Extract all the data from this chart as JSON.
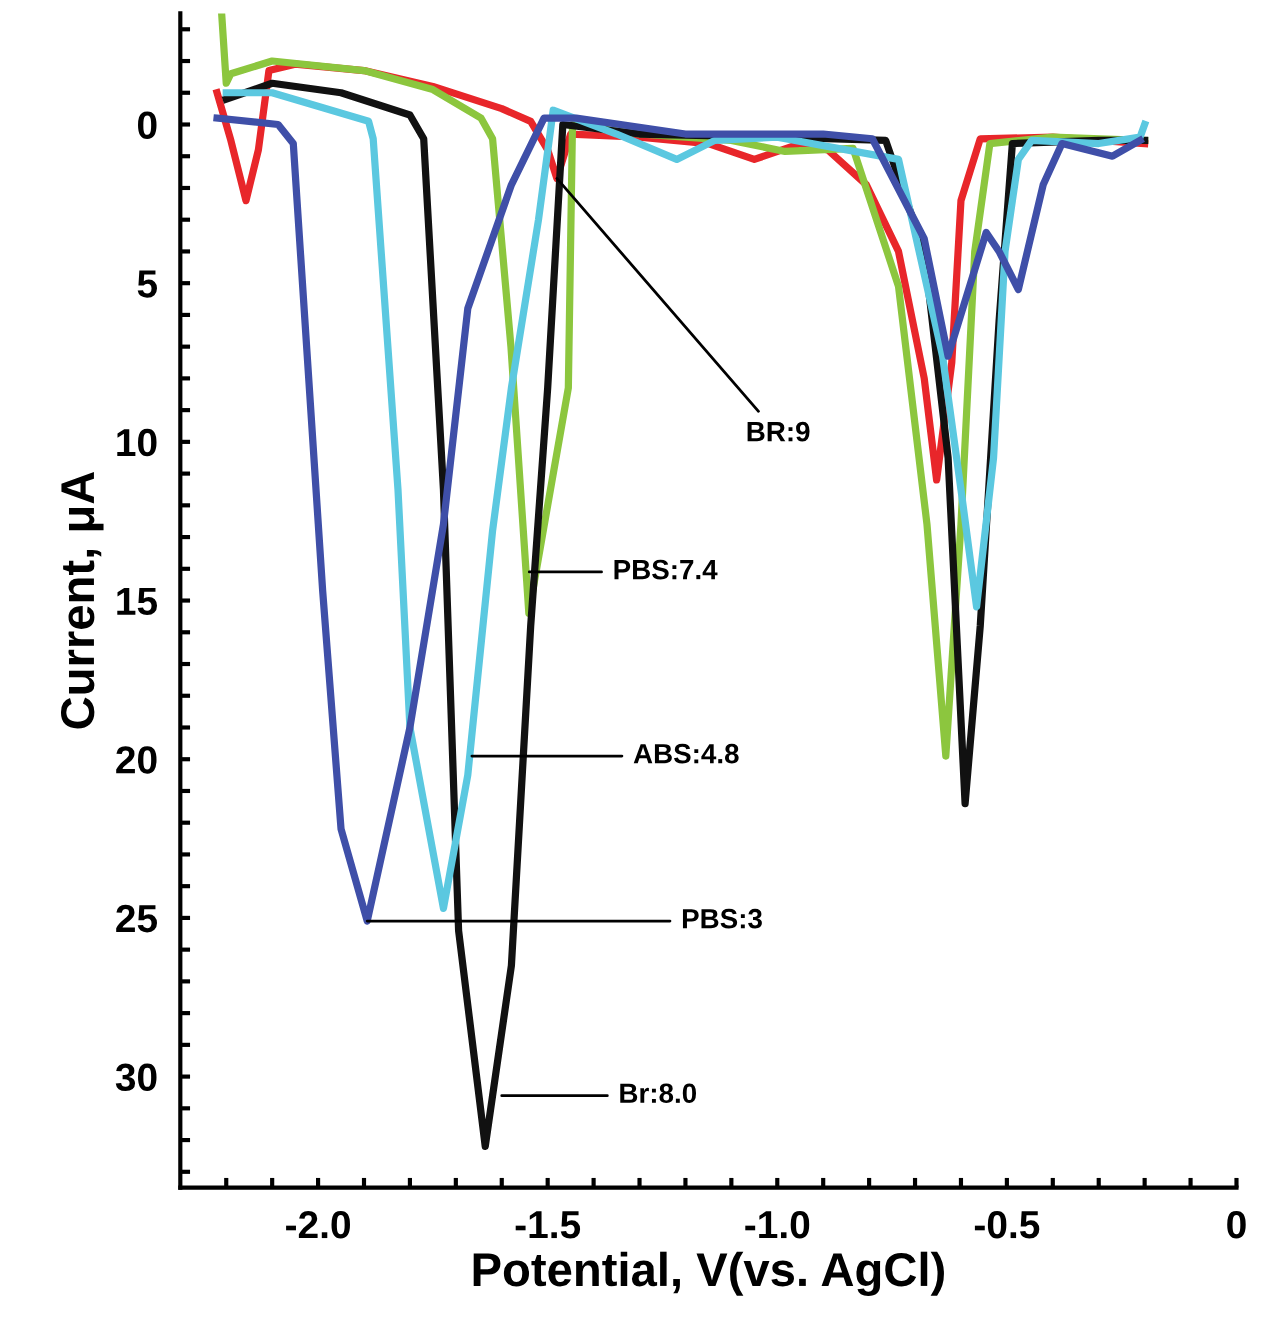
{
  "chart_data": {
    "type": "line",
    "xlabel": "Potential, V(vs. AgCl)",
    "ylabel": "Current, μA",
    "xlim": [
      -2.3,
      0
    ],
    "ylim": [
      33.5,
      -3.5
    ],
    "xticks": [
      {
        "value": -2.0,
        "label": "-2.0"
      },
      {
        "value": -1.5,
        "label": "-1.5"
      },
      {
        "value": -1.0,
        "label": "-1.0"
      },
      {
        "value": -0.5,
        "label": "-0.5"
      },
      0,
      {
        "value": -2.2,
        "label": null
      },
      {
        "value": -2.1,
        "label": null
      },
      {
        "value": -1.9,
        "label": null
      },
      {
        "value": -1.8,
        "label": null
      },
      {
        "value": -1.7,
        "label": null
      },
      {
        "value": -1.6,
        "label": null
      },
      {
        "value": -1.4,
        "label": null
      },
      {
        "value": -1.3,
        "label": null
      },
      {
        "value": -1.2,
        "label": null
      },
      {
        "value": -1.1,
        "label": null
      },
      {
        "value": -0.9,
        "label": null
      },
      {
        "value": -0.8,
        "label": null
      },
      {
        "value": -0.7,
        "label": null
      },
      {
        "value": -0.6,
        "label": null
      },
      {
        "value": -0.4,
        "label": null
      },
      {
        "value": -0.3,
        "label": null
      },
      {
        "value": -0.2,
        "label": null
      },
      {
        "value": -0.1,
        "label": null
      }
    ],
    "yticks": [
      0,
      5,
      10,
      15,
      20,
      25,
      30,
      {
        "value": -3,
        "label": null
      },
      {
        "value": -2,
        "label": null
      },
      {
        "value": -1,
        "label": null
      },
      {
        "value": 1,
        "label": null
      },
      {
        "value": 2,
        "label": null
      },
      {
        "value": 3,
        "label": null
      },
      {
        "value": 4,
        "label": null
      },
      {
        "value": 6,
        "label": null
      },
      {
        "value": 7,
        "label": null
      },
      {
        "value": 8,
        "label": null
      },
      {
        "value": 9,
        "label": null
      },
      {
        "value": 11,
        "label": null
      },
      {
        "value": 12,
        "label": null
      },
      {
        "value": 13,
        "label": null
      },
      {
        "value": 14,
        "label": null
      },
      {
        "value": 16,
        "label": null
      },
      {
        "value": 17,
        "label": null
      },
      {
        "value": 18,
        "label": null
      },
      {
        "value": 19,
        "label": null
      },
      {
        "value": 21,
        "label": null
      },
      {
        "value": 22,
        "label": null
      },
      {
        "value": 23,
        "label": null
      },
      {
        "value": 24,
        "label": null
      },
      {
        "value": 26,
        "label": null
      },
      {
        "value": 27,
        "label": null
      },
      {
        "value": 28,
        "label": null
      },
      {
        "value": 29,
        "label": null
      },
      {
        "value": 31,
        "label": null
      },
      {
        "value": 32,
        "label": null
      },
      {
        "value": 33,
        "label": null
      }
    ],
    "grid": false,
    "legend": false,
    "marker": "none",
    "line_style": "solid",
    "series": [
      {
        "color": "#e8262a",
        "x": [
          -2.22,
          -2.19,
          -2.157,
          -2.13,
          -2.107,
          -2.05,
          -1.9,
          -1.75,
          -1.6,
          -1.537,
          -1.5,
          -1.48,
          -1.45,
          -1.3,
          -1.15,
          -1.05,
          -0.95,
          -0.89,
          -0.806,
          -0.736,
          -0.68,
          -0.653,
          -0.62,
          -0.6,
          -0.558,
          -0.4,
          -0.2
        ],
        "values": [
          -1.0,
          0.5,
          2.4,
          0.8,
          -1.7,
          -1.9,
          -1.7,
          -1.2,
          -0.5,
          -0.1,
          0.8,
          1.7,
          0.3,
          0.4,
          0.6,
          1.1,
          0.6,
          0.8,
          1.9,
          4.0,
          8.0,
          11.2,
          7.5,
          2.4,
          0.45,
          0.4,
          0.6
        ]
      },
      {
        "color": "#8cc63e",
        "x": [
          -2.21,
          -2.2,
          -2.19,
          -2.1,
          -1.9,
          -1.75,
          -1.645,
          -1.62,
          -1.58,
          -1.541,
          -1.5,
          -1.455,
          -1.446,
          -1.3,
          -1.1,
          -0.983,
          -0.835,
          -0.736,
          -0.674,
          -0.633,
          -0.6,
          -0.57,
          -0.537,
          -0.4,
          -0.2
        ],
        "values": [
          -3.5,
          -1.3,
          -1.6,
          -2.0,
          -1.7,
          -1.1,
          -0.2,
          0.45,
          7.0,
          15.4,
          12.0,
          8.3,
          0.0,
          0.3,
          0.5,
          0.85,
          0.75,
          5.1,
          12.6,
          19.9,
          12.6,
          4.0,
          0.6,
          0.4,
          0.5
        ]
      },
      {
        "color": "#111111",
        "x": [
          -2.2,
          -2.1,
          -1.95,
          -1.8,
          -1.77,
          -1.727,
          -1.694,
          -1.636,
          -1.579,
          -1.537,
          -1.5,
          -1.467,
          -1.3,
          -1.0,
          -0.764,
          -0.68,
          -0.628,
          -0.591,
          -0.558,
          -0.517,
          -0.488,
          -0.3,
          -0.2
        ],
        "values": [
          -0.8,
          -1.3,
          -1.0,
          -0.3,
          0.45,
          11.5,
          25.4,
          32.2,
          26.5,
          15.8,
          8.3,
          0.0,
          0.3,
          0.4,
          0.5,
          4.0,
          10.5,
          21.4,
          15.8,
          6.2,
          0.6,
          0.5,
          0.5
        ]
      },
      {
        "color": "#5bc8e0",
        "x": [
          -2.2,
          -2.1,
          -1.89,
          -1.88,
          -1.826,
          -1.8,
          -1.727,
          -1.674,
          -1.62,
          -1.579,
          -1.52,
          -1.488,
          -1.35,
          -1.219,
          -1.136,
          -1.0,
          -0.736,
          -0.64,
          -0.6,
          -0.566,
          -0.529,
          -0.504,
          -0.475,
          -0.446,
          -0.3,
          -0.21,
          -0.2
        ],
        "values": [
          -1.0,
          -1.0,
          -0.1,
          0.45,
          11.5,
          19.0,
          24.7,
          20.5,
          12.8,
          8.3,
          3.0,
          -0.45,
          0.3,
          1.1,
          0.5,
          0.4,
          1.1,
          7.3,
          11.5,
          15.2,
          10.5,
          4.0,
          1.1,
          0.5,
          0.6,
          0.4,
          0.0
        ]
      },
      {
        "color": "#3f4fa8",
        "x": [
          -2.22,
          -2.087,
          -2.054,
          -1.99,
          -1.95,
          -1.893,
          -1.8,
          -1.727,
          -1.674,
          -1.579,
          -1.508,
          -1.438,
          -1.2,
          -0.9,
          -0.793,
          -0.68,
          -0.628,
          -0.545,
          -0.517,
          -0.475,
          -0.421,
          -0.38,
          -0.27,
          -0.21
        ],
        "values": [
          -0.2,
          0.0,
          0.6,
          14.7,
          22.2,
          25.1,
          19.0,
          12.6,
          5.8,
          1.9,
          -0.2,
          -0.2,
          0.3,
          0.3,
          0.45,
          3.6,
          7.3,
          3.4,
          4.0,
          5.2,
          1.9,
          0.6,
          1.0,
          0.5
        ]
      }
    ],
    "annotations": [
      {
        "text": "BR:9",
        "x": -1.48,
        "y": 1.7
      },
      {
        "text": "PBS:7.4",
        "x": -1.54,
        "y": 14.1
      },
      {
        "text": "ABS:4.8",
        "x": -1.665,
        "y": 19.9
      },
      {
        "text": "PBS:3",
        "x": -1.893,
        "y": 25.1
      },
      {
        "text": "Br:8.0",
        "x": -1.6,
        "y": 30.6
      }
    ]
  }
}
